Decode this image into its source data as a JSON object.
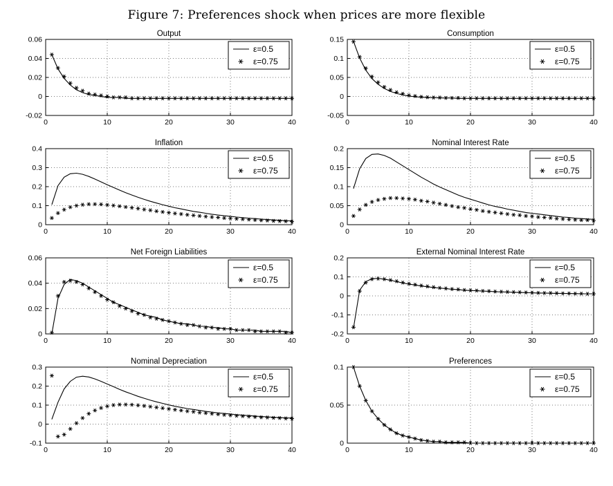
{
  "figure": {
    "title": "Figure 7: Preferences shock when prices are more flexible"
  },
  "colors": {
    "foreground": "#000000",
    "background": "#ffffff"
  },
  "layout": {
    "grid": "dotted",
    "legend_position": "top-right",
    "rows": 4,
    "cols": 2
  },
  "x_values": [
    1,
    2,
    3,
    4,
    5,
    6,
    7,
    8,
    9,
    10,
    11,
    12,
    13,
    14,
    15,
    16,
    17,
    18,
    19,
    20,
    21,
    22,
    23,
    24,
    25,
    26,
    27,
    28,
    29,
    30,
    31,
    32,
    33,
    34,
    35,
    36,
    37,
    38,
    39,
    40
  ],
  "chart_data": [
    {
      "id": "output",
      "type": "line",
      "title": "Output",
      "xlim": [
        0,
        40
      ],
      "xticks": [
        0,
        10,
        20,
        30,
        40
      ],
      "xticklabels": [
        "0",
        "10",
        "20",
        "30",
        "40"
      ],
      "ylim": [
        -0.02,
        0.06
      ],
      "yticks": [
        -0.02,
        0,
        0.02,
        0.04,
        0.06
      ],
      "yticklabels": [
        "-0.02",
        "0",
        "0.02",
        "0.04",
        "0.06"
      ],
      "series": [
        {
          "name": "ε=0.5",
          "style": "line",
          "values": [
            0.044,
            0.029,
            0.019,
            0.012,
            0.007,
            0.004,
            0.002,
            0.001,
            0,
            -0.001,
            -0.001,
            -0.001,
            -0.002,
            -0.002,
            -0.002,
            -0.002,
            -0.002,
            -0.002,
            -0.002,
            -0.002,
            -0.002,
            -0.002,
            -0.002,
            -0.002,
            -0.002,
            -0.002,
            -0.002,
            -0.002,
            -0.002,
            -0.002,
            -0.002,
            -0.002,
            -0.002,
            -0.002,
            -0.002,
            -0.002,
            -0.002,
            -0.002,
            -0.002,
            -0.002
          ]
        },
        {
          "name": "ε=0.75",
          "style": "asterisk",
          "values": [
            0.044,
            0.03,
            0.021,
            0.014,
            0.009,
            0.006,
            0.003,
            0.002,
            0.001,
            0,
            -0.001,
            -0.001,
            -0.001,
            -0.002,
            -0.002,
            -0.002,
            -0.002,
            -0.002,
            -0.002,
            -0.002,
            -0.002,
            -0.002,
            -0.002,
            -0.002,
            -0.002,
            -0.002,
            -0.002,
            -0.002,
            -0.002,
            -0.002,
            -0.002,
            -0.002,
            -0.002,
            -0.002,
            -0.002,
            -0.002,
            -0.002,
            -0.002,
            -0.002,
            -0.002
          ]
        }
      ]
    },
    {
      "id": "consumption",
      "type": "line",
      "title": "Consumption",
      "xlim": [
        0,
        40
      ],
      "xticks": [
        0,
        10,
        20,
        30,
        40
      ],
      "xticklabels": [
        "0",
        "10",
        "20",
        "30",
        "40"
      ],
      "ylim": [
        -0.05,
        0.15
      ],
      "yticks": [
        -0.05,
        0,
        0.05,
        0.1,
        0.15
      ],
      "yticklabels": [
        "-0.05",
        "0",
        "0.05",
        "0.1",
        "0.15"
      ],
      "series": [
        {
          "name": "ε=0.5",
          "style": "line",
          "values": [
            0.145,
            0.101,
            0.069,
            0.047,
            0.032,
            0.021,
            0.013,
            0.008,
            0.004,
            0.001,
            -0.001,
            -0.002,
            -0.003,
            -0.003,
            -0.004,
            -0.004,
            -0.004,
            -0.005,
            -0.005,
            -0.005,
            -0.005,
            -0.005,
            -0.005,
            -0.005,
            -0.005,
            -0.005,
            -0.005,
            -0.005,
            -0.005,
            -0.005,
            -0.005,
            -0.005,
            -0.005,
            -0.005,
            -0.005,
            -0.005,
            -0.005,
            -0.005,
            -0.005,
            -0.005
          ]
        },
        {
          "name": "ε=0.75",
          "style": "asterisk",
          "values": [
            0.144,
            0.104,
            0.074,
            0.052,
            0.037,
            0.025,
            0.017,
            0.011,
            0.007,
            0.003,
            0.001,
            -0.001,
            -0.002,
            -0.003,
            -0.003,
            -0.004,
            -0.004,
            -0.004,
            -0.005,
            -0.005,
            -0.005,
            -0.005,
            -0.005,
            -0.005,
            -0.005,
            -0.005,
            -0.005,
            -0.005,
            -0.005,
            -0.005,
            -0.005,
            -0.005,
            -0.005,
            -0.005,
            -0.005,
            -0.005,
            -0.005,
            -0.005,
            -0.005,
            -0.005
          ]
        }
      ]
    },
    {
      "id": "inflation",
      "type": "line",
      "title": "Inflation",
      "xlim": [
        0,
        40
      ],
      "xticks": [
        0,
        10,
        20,
        30,
        40
      ],
      "xticklabels": [
        "0",
        "10",
        "20",
        "30",
        "40"
      ],
      "ylim": [
        0,
        0.4
      ],
      "yticks": [
        0,
        0.1,
        0.2,
        0.3,
        0.4
      ],
      "yticklabels": [
        "0",
        "0.1",
        "0.2",
        "0.3",
        "0.4"
      ],
      "series": [
        {
          "name": "ε=0.5",
          "style": "line",
          "values": [
            0.105,
            0.205,
            0.25,
            0.268,
            0.271,
            0.265,
            0.254,
            0.24,
            0.225,
            0.21,
            0.196,
            0.182,
            0.168,
            0.156,
            0.144,
            0.133,
            0.123,
            0.114,
            0.105,
            0.097,
            0.089,
            0.083,
            0.076,
            0.07,
            0.065,
            0.06,
            0.055,
            0.051,
            0.047,
            0.044,
            0.04,
            0.037,
            0.034,
            0.032,
            0.029,
            0.027,
            0.025,
            0.023,
            0.021,
            0.02
          ]
        },
        {
          "name": "ε=0.75",
          "style": "asterisk",
          "values": [
            0.035,
            0.061,
            0.079,
            0.092,
            0.1,
            0.105,
            0.108,
            0.108,
            0.107,
            0.104,
            0.101,
            0.097,
            0.093,
            0.089,
            0.085,
            0.08,
            0.076,
            0.071,
            0.067,
            0.063,
            0.059,
            0.056,
            0.052,
            0.049,
            0.046,
            0.043,
            0.04,
            0.038,
            0.035,
            0.033,
            0.031,
            0.029,
            0.027,
            0.025,
            0.023,
            0.022,
            0.02,
            0.019,
            0.018,
            0.016
          ]
        }
      ]
    },
    {
      "id": "nominal-interest-rate",
      "type": "line",
      "title": "Nominal Interest Rate",
      "xlim": [
        0,
        40
      ],
      "xticks": [
        0,
        10,
        20,
        30,
        40
      ],
      "xticklabels": [
        "0",
        "10",
        "20",
        "30",
        "40"
      ],
      "ylim": [
        0,
        0.2
      ],
      "yticks": [
        0,
        0.05,
        0.1,
        0.15,
        0.2
      ],
      "yticklabels": [
        "0",
        "0.05",
        "0.1",
        "0.15",
        "0.2"
      ],
      "series": [
        {
          "name": "ε=0.5",
          "style": "line",
          "values": [
            0.095,
            0.147,
            0.174,
            0.185,
            0.186,
            0.182,
            0.175,
            0.165,
            0.155,
            0.145,
            0.135,
            0.125,
            0.116,
            0.107,
            0.099,
            0.092,
            0.085,
            0.078,
            0.072,
            0.067,
            0.062,
            0.057,
            0.052,
            0.048,
            0.045,
            0.041,
            0.038,
            0.035,
            0.032,
            0.03,
            0.028,
            0.026,
            0.024,
            0.022,
            0.02,
            0.019,
            0.017,
            0.016,
            0.015,
            0.014
          ]
        },
        {
          "name": "ε=0.75",
          "style": "asterisk",
          "values": [
            0.023,
            0.04,
            0.052,
            0.06,
            0.065,
            0.068,
            0.07,
            0.07,
            0.069,
            0.068,
            0.066,
            0.063,
            0.061,
            0.058,
            0.055,
            0.052,
            0.049,
            0.046,
            0.044,
            0.041,
            0.039,
            0.036,
            0.034,
            0.032,
            0.03,
            0.028,
            0.026,
            0.025,
            0.023,
            0.022,
            0.02,
            0.019,
            0.018,
            0.016,
            0.015,
            0.014,
            0.013,
            0.012,
            0.012,
            0.011
          ]
        }
      ]
    },
    {
      "id": "net-foreign-liabilities",
      "type": "line",
      "title": "Net Foreign Liabilities",
      "xlim": [
        0,
        40
      ],
      "xticks": [
        0,
        10,
        20,
        30,
        40
      ],
      "xticklabels": [
        "0",
        "10",
        "20",
        "30",
        "40"
      ],
      "ylim": [
        0,
        0.06
      ],
      "yticks": [
        0,
        0.02,
        0.04,
        0.06
      ],
      "yticklabels": [
        "0",
        "0.02",
        "0.04",
        "0.06"
      ],
      "series": [
        {
          "name": "ε=0.5",
          "style": "line",
          "values": [
            0,
            0.028,
            0.039,
            0.043,
            0.042,
            0.04,
            0.037,
            0.034,
            0.031,
            0.028,
            0.025,
            0.023,
            0.021,
            0.019,
            0.017,
            0.015,
            0.014,
            0.013,
            0.011,
            0.01,
            0.009,
            0.008,
            0.008,
            0.007,
            0.006,
            0.006,
            0.005,
            0.005,
            0.004,
            0.004,
            0.003,
            0.003,
            0.003,
            0.003,
            0.002,
            0.002,
            0.002,
            0.002,
            0.002,
            0.001
          ]
        },
        {
          "name": "ε=0.75",
          "style": "asterisk",
          "values": [
            0.001,
            0.03,
            0.041,
            0.042,
            0.041,
            0.039,
            0.036,
            0.033,
            0.03,
            0.027,
            0.025,
            0.022,
            0.02,
            0.018,
            0.016,
            0.015,
            0.013,
            0.012,
            0.011,
            0.01,
            0.009,
            0.008,
            0.007,
            0.007,
            0.006,
            0.005,
            0.005,
            0.004,
            0.004,
            0.004,
            0.003,
            0.003,
            0.003,
            0.002,
            0.002,
            0.002,
            0.002,
            0.002,
            0.001,
            0.001
          ]
        }
      ]
    },
    {
      "id": "external-nominal-interest-rate",
      "type": "line",
      "title": "External Nominal  Interest Rate",
      "xlim": [
        0,
        40
      ],
      "xticks": [
        0,
        10,
        20,
        30,
        40
      ],
      "xticklabels": [
        "0",
        "10",
        "20",
        "30",
        "40"
      ],
      "ylim": [
        -0.2,
        0.2
      ],
      "yticks": [
        -0.2,
        -0.1,
        0,
        0.1,
        0.2
      ],
      "yticklabels": [
        "-0.2",
        "-0.1",
        "0",
        "0.1",
        "0.2"
      ],
      "series": [
        {
          "name": "ε=0.5",
          "style": "line",
          "values": [
            -0.17,
            0.03,
            0.075,
            0.09,
            0.092,
            0.088,
            0.082,
            0.075,
            0.068,
            0.062,
            0.057,
            0.052,
            0.048,
            0.044,
            0.041,
            0.038,
            0.035,
            0.033,
            0.03,
            0.028,
            0.027,
            0.025,
            0.024,
            0.022,
            0.021,
            0.02,
            0.019,
            0.018,
            0.017,
            0.016,
            0.015,
            0.015,
            0.014,
            0.013,
            0.013,
            0.012,
            0.012,
            0.011,
            0.011,
            0.011
          ]
        },
        {
          "name": "ε=0.75",
          "style": "asterisk",
          "values": [
            -0.165,
            0.025,
            0.07,
            0.088,
            0.091,
            0.088,
            0.083,
            0.077,
            0.07,
            0.064,
            0.059,
            0.054,
            0.05,
            0.046,
            0.042,
            0.039,
            0.036,
            0.034,
            0.031,
            0.029,
            0.028,
            0.026,
            0.025,
            0.023,
            0.022,
            0.021,
            0.02,
            0.019,
            0.018,
            0.017,
            0.016,
            0.015,
            0.015,
            0.014,
            0.013,
            0.013,
            0.012,
            0.012,
            0.011,
            0.011
          ]
        }
      ]
    },
    {
      "id": "nominal-depreciation",
      "type": "line",
      "title": "Nominal Depreciation",
      "xlim": [
        0,
        40
      ],
      "xticks": [
        0,
        10,
        20,
        30,
        40
      ],
      "xticklabels": [
        "0",
        "10",
        "20",
        "30",
        "40"
      ],
      "ylim": [
        -0.1,
        0.3
      ],
      "yticks": [
        -0.1,
        0,
        0.1,
        0.2,
        0.3
      ],
      "yticklabels": [
        "-0.1",
        "0",
        "0.1",
        "0.2",
        "0.3"
      ],
      "series": [
        {
          "name": "ε=0.5",
          "style": "line",
          "values": [
            0.025,
            0.115,
            0.185,
            0.225,
            0.247,
            0.252,
            0.248,
            0.238,
            0.225,
            0.211,
            0.197,
            0.183,
            0.17,
            0.158,
            0.146,
            0.136,
            0.126,
            0.117,
            0.109,
            0.101,
            0.094,
            0.088,
            0.082,
            0.077,
            0.072,
            0.067,
            0.063,
            0.059,
            0.056,
            0.053,
            0.05,
            0.047,
            0.045,
            0.042,
            0.04,
            0.038,
            0.036,
            0.035,
            0.033,
            0.032
          ]
        },
        {
          "name": "ε=0.75",
          "style": "asterisk",
          "values": [
            0.255,
            -0.065,
            -0.055,
            -0.025,
            0.005,
            0.032,
            0.055,
            0.072,
            0.085,
            0.094,
            0.1,
            0.103,
            0.103,
            0.102,
            0.099,
            0.096,
            0.092,
            0.088,
            0.084,
            0.08,
            0.076,
            0.072,
            0.068,
            0.065,
            0.061,
            0.058,
            0.055,
            0.052,
            0.049,
            0.047,
            0.044,
            0.042,
            0.04,
            0.038,
            0.036,
            0.035,
            0.033,
            0.032,
            0.03,
            0.029
          ]
        }
      ]
    },
    {
      "id": "preferences",
      "type": "line",
      "title": "Preferences",
      "xlim": [
        0,
        40
      ],
      "xticks": [
        0,
        10,
        20,
        30,
        40
      ],
      "xticklabels": [
        "0",
        "10",
        "20",
        "30",
        "40"
      ],
      "ylim": [
        0,
        0.1
      ],
      "yticks": [
        0,
        0.05,
        0.1
      ],
      "yticklabels": [
        "0",
        "0.05",
        "0.1"
      ],
      "series": [
        {
          "name": "ε=0.5",
          "style": "line",
          "values": [
            0.1,
            0.075,
            0.056,
            0.042,
            0.032,
            0.024,
            0.018,
            0.013,
            0.01,
            0.008,
            0.006,
            0.004,
            0.003,
            0.002,
            0.002,
            0.001,
            0.001,
            0.001,
            0.001,
            0,
            0,
            0,
            0,
            0,
            0,
            0,
            0,
            0,
            0,
            0,
            0,
            0,
            0,
            0,
            0,
            0,
            0,
            0,
            0,
            0
          ]
        },
        {
          "name": "ε=0.75",
          "style": "asterisk",
          "values": [
            0.1,
            0.075,
            0.056,
            0.042,
            0.032,
            0.024,
            0.018,
            0.013,
            0.01,
            0.008,
            0.006,
            0.004,
            0.003,
            0.002,
            0.002,
            0.001,
            0.001,
            0.001,
            0.001,
            0,
            0,
            0,
            0,
            0,
            0,
            0,
            0,
            0,
            0,
            0,
            0,
            0,
            0,
            0,
            0,
            0,
            0,
            0,
            0,
            0
          ]
        }
      ]
    }
  ]
}
